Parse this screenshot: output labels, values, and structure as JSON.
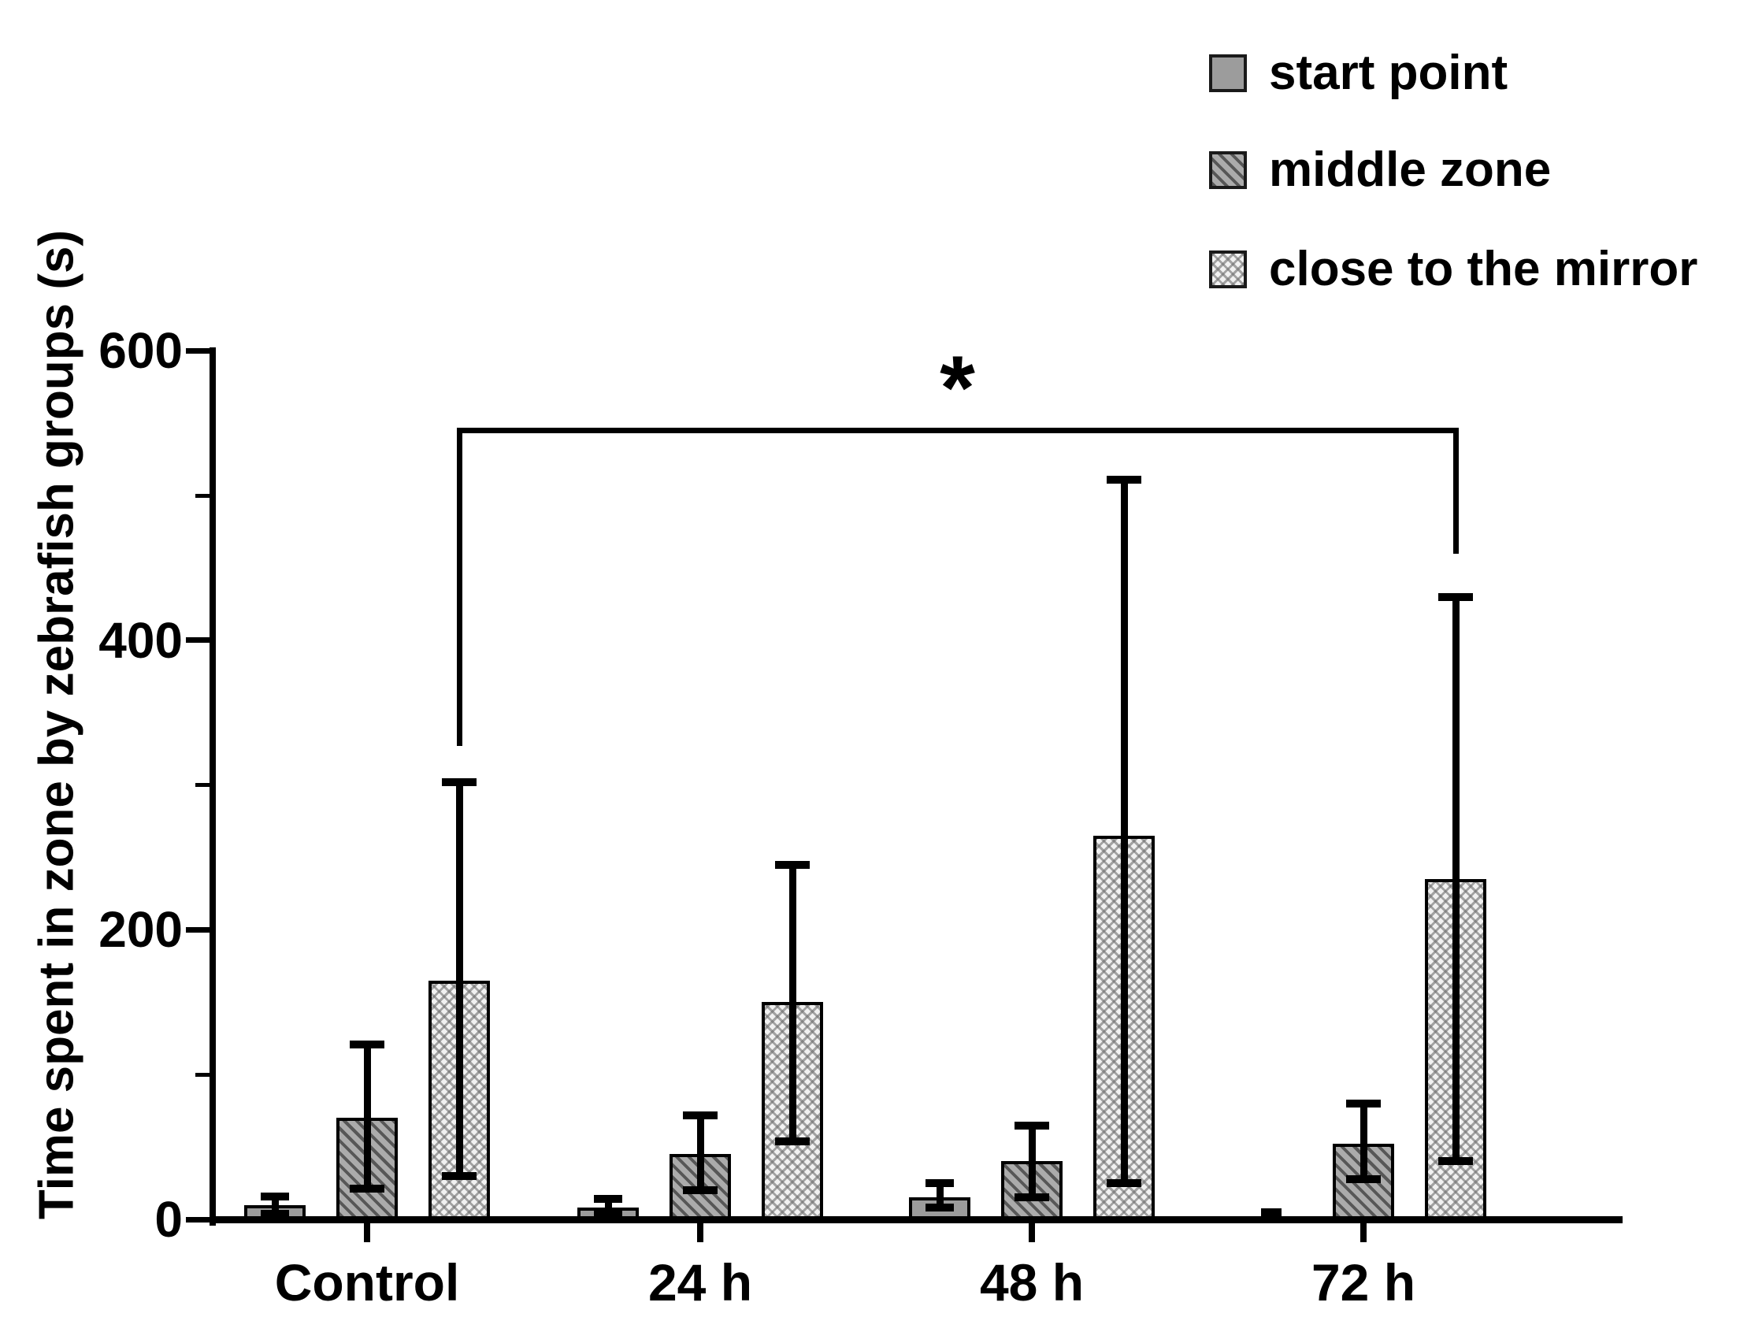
{
  "figure": {
    "kind": "scientific bar chart with SD error bars",
    "background_color": "#ffffff",
    "axis_color": "#000000",
    "bar_border_color": "#000000",
    "bar_fill_solid": "#9c9c9c",
    "bar_fill_hatch_base": "#ababab",
    "bar_fill_hatch_stripe": "#575757",
    "bar_fill_cross_base": "#f1f1f1",
    "bar_fill_cross_line": "#6e6e6e"
  },
  "chart_data": {
    "type": "bar",
    "title": "",
    "xlabel": "",
    "ylabel": "Time spent in zone by zebrafish groups (s)",
    "ylim": [
      0,
      600
    ],
    "yticks_major": [
      0,
      200,
      400,
      600
    ],
    "yticks_minor": [
      100,
      300,
      500
    ],
    "ytick_labels": [
      "0",
      "200",
      "400",
      "600"
    ],
    "grid": false,
    "legend_position": "top-right",
    "categories": [
      "Control",
      "24 h",
      "48 h",
      "72 h"
    ],
    "series": [
      {
        "name": "start point",
        "pattern": "solid",
        "values": [
          10,
          8,
          15,
          3
        ],
        "err_low_cap": [
          4,
          3,
          8,
          null
        ],
        "err_high_cap": [
          16,
          14,
          25,
          null
        ]
      },
      {
        "name": "middle zone",
        "pattern": "diagonal-hatch",
        "values": [
          70,
          45,
          40,
          52
        ],
        "err_low_cap": [
          21,
          20,
          15,
          28
        ],
        "err_high_cap": [
          121,
          72,
          65,
          80
        ]
      },
      {
        "name": "close to the mirror",
        "pattern": "crosshatch",
        "values": [
          165,
          150,
          265,
          235
        ],
        "err_low_cap": [
          30,
          54,
          25,
          40
        ],
        "err_high_cap": [
          302,
          245,
          511,
          430
        ]
      }
    ],
    "error_bar_type": "SD, both directions, capped",
    "significance": {
      "label": "*",
      "compares": "close to the mirror: Control vs 72 h",
      "bracket_value_y": 545,
      "left_drop_down_to_value": 327,
      "right_drop_down_to_value": 460
    }
  },
  "legend": {
    "items": [
      {
        "label": "start point",
        "pattern": "solid"
      },
      {
        "label": "middle zone",
        "pattern": "diagonal-hatch"
      },
      {
        "label": "close to the mirror",
        "pattern": "crosshatch"
      }
    ]
  }
}
